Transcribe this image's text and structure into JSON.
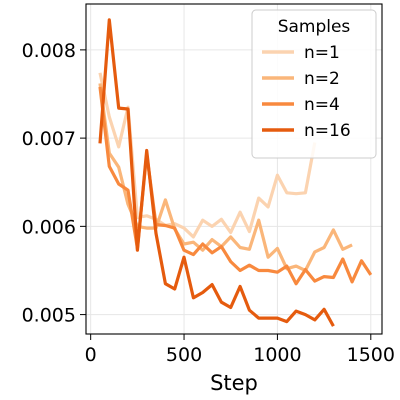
{
  "chart_data": {
    "type": "line",
    "title": "",
    "xlabel": "Step",
    "ylabel": "",
    "xlim": [
      -25,
      1560
    ],
    "ylim": [
      0.00478,
      0.00852
    ],
    "xticks": [
      0,
      500,
      1000,
      1500
    ],
    "yticks": [
      0.005,
      0.006,
      0.007,
      0.008
    ],
    "xtick_labels": [
      "0",
      "500",
      "1000",
      "1500"
    ],
    "ytick_labels": [
      "0.005",
      "0.006",
      "0.007",
      "0.008"
    ],
    "grid": true,
    "legend": {
      "title": "Samples",
      "placement": "top-right"
    },
    "series": [
      {
        "name": "n=1",
        "color": "#fbd3b0",
        "x": [
          50,
          100,
          150,
          200,
          250,
          300,
          350,
          400,
          450,
          500,
          550,
          600,
          650,
          700,
          750,
          800,
          850,
          900,
          950,
          1000,
          1050,
          1100,
          1150,
          1200
        ],
        "y": [
          0.00774,
          0.00724,
          0.0069,
          0.00735,
          0.0061,
          0.00612,
          0.00608,
          0.00601,
          0.00603,
          0.00598,
          0.00588,
          0.00607,
          0.006,
          0.00608,
          0.00593,
          0.00616,
          0.00594,
          0.00632,
          0.00622,
          0.00658,
          0.00638,
          0.00637,
          0.00638,
          0.00695
        ]
      },
      {
        "name": "n=2",
        "color": "#fab67a",
        "x": [
          50,
          100,
          150,
          200,
          250,
          300,
          350,
          400,
          450,
          500,
          550,
          600,
          650,
          700,
          750,
          800,
          850,
          900,
          950,
          1000,
          1050,
          1100,
          1150,
          1200,
          1250,
          1300,
          1350,
          1400
        ],
        "y": [
          0.00762,
          0.00683,
          0.00667,
          0.00625,
          0.006,
          0.00598,
          0.00598,
          0.0063,
          0.00597,
          0.0058,
          0.00582,
          0.00573,
          0.00585,
          0.00577,
          0.00588,
          0.00576,
          0.00574,
          0.00607,
          0.00565,
          0.00575,
          0.00552,
          0.00555,
          0.0055,
          0.00571,
          0.00576,
          0.00596,
          0.00574,
          0.00579
        ]
      },
      {
        "name": "n=4",
        "color": "#f8893e",
        "x": [
          50,
          100,
          150,
          200,
          250,
          300,
          350,
          400,
          450,
          500,
          550,
          600,
          650,
          700,
          750,
          800,
          850,
          900,
          950,
          1000,
          1050,
          1100,
          1150,
          1200,
          1250,
          1300,
          1350,
          1400,
          1450,
          1500
        ],
        "y": [
          0.00758,
          0.00668,
          0.00648,
          0.00641,
          0.00575,
          0.00682,
          0.00602,
          0.00601,
          0.00598,
          0.00573,
          0.00568,
          0.0058,
          0.0057,
          0.00577,
          0.0056,
          0.0055,
          0.00556,
          0.0055,
          0.0055,
          0.00548,
          0.00555,
          0.00535,
          0.00551,
          0.00538,
          0.00543,
          0.00542,
          0.00563,
          0.00537,
          0.00561,
          0.00545
        ]
      },
      {
        "name": "n=16",
        "color": "#e55b0e",
        "x": [
          50,
          100,
          150,
          200,
          250,
          300,
          350,
          400,
          450,
          500,
          550,
          600,
          650,
          700,
          750,
          800,
          850,
          900,
          950,
          1000,
          1050,
          1100,
          1150,
          1200,
          1250,
          1300
        ],
        "y": [
          0.00694,
          0.00834,
          0.00734,
          0.00733,
          0.00573,
          0.00686,
          0.00592,
          0.00535,
          0.00529,
          0.00565,
          0.00519,
          0.00525,
          0.00534,
          0.00514,
          0.00508,
          0.00532,
          0.00505,
          0.00496,
          0.00496,
          0.00496,
          0.00492,
          0.00504,
          0.005,
          0.00494,
          0.00506,
          0.00487
        ]
      }
    ]
  }
}
